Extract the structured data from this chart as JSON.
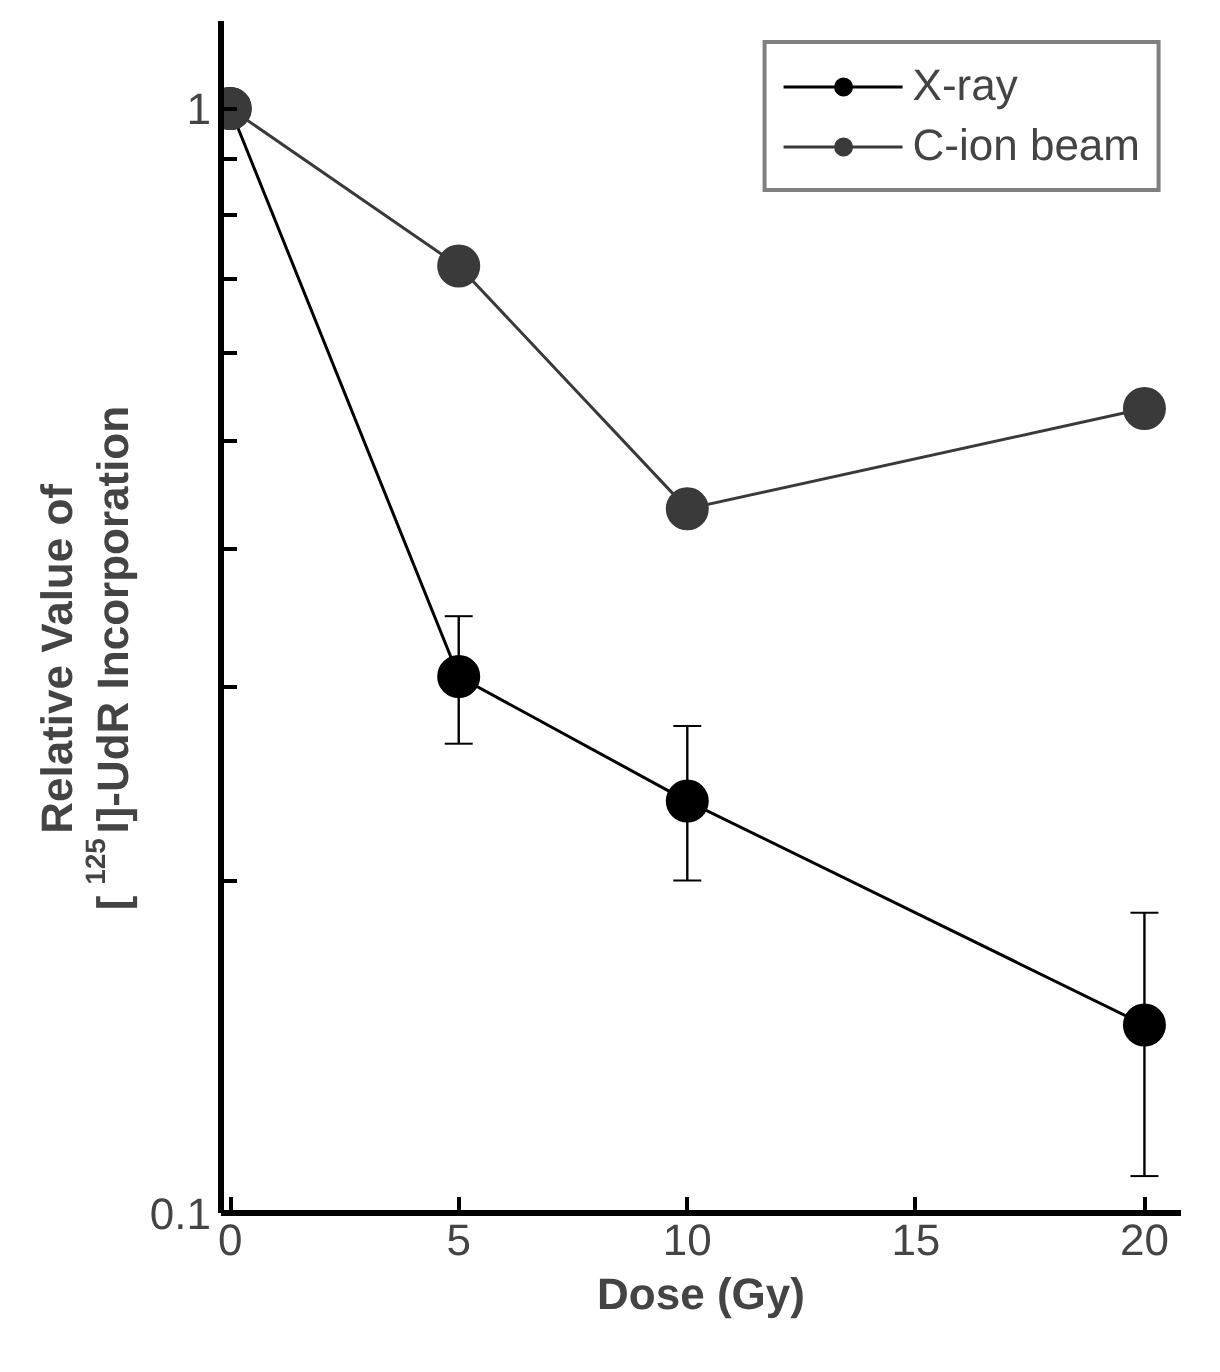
{
  "chart_data": {
    "type": "line",
    "xlabel": "Dose (Gy)",
    "ylabel": "Relative Value of\n[$^{125}$I]-UdR Incorporation",
    "log": "y",
    "x": [
      0,
      5,
      10,
      20
    ],
    "xlim": [
      -0.2,
      20.8
    ],
    "xticks": [
      0,
      5,
      10,
      15,
      20
    ],
    "ylim": [
      0.1,
      1.2
    ],
    "yticks": [
      0.1,
      {
        "value": 0.2,
        "label": null
      },
      {
        "value": 0.3,
        "label": null
      },
      {
        "value": 0.4,
        "label": null
      },
      {
        "value": 0.5,
        "label": null
      },
      {
        "value": 0.6,
        "label": null
      },
      {
        "value": 0.7,
        "label": null
      },
      {
        "value": 0.8,
        "label": null
      },
      {
        "value": 0.9,
        "label": null
      },
      1
    ],
    "marker": "circle",
    "line_style": "solid",
    "grid": false,
    "legend": "top right",
    "series": [
      {
        "name": "X-ray",
        "color": "#000000",
        "values": [
          1,
          0.306,
          0.236,
          0.148
        ],
        "errors": [
          null,
          [
            0.266,
            0.347
          ],
          [
            0.2,
            0.276
          ],
          [
            0.108,
            0.187
          ]
        ]
      },
      {
        "name": "C-ion beam",
        "color": "#3a3a3a",
        "values": [
          1,
          0.72,
          0.434,
          0.535
        ]
      }
    ]
  }
}
